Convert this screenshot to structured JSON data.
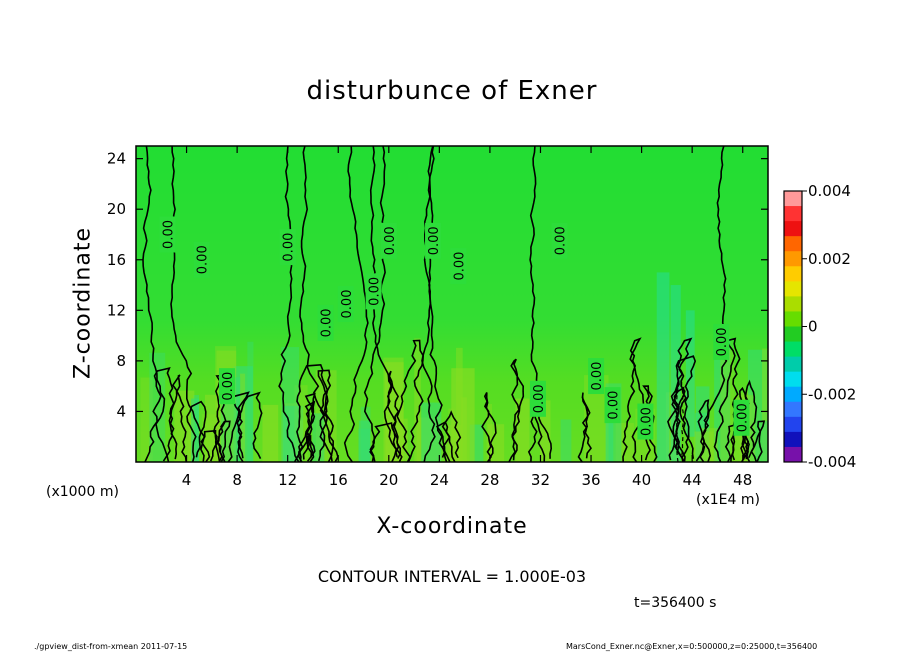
{
  "chart_data": {
    "type": "heatmap",
    "title": "disturbunce of Exner",
    "xlabel": "X-coordinate",
    "ylabel": "Z-coordinate",
    "x_unit_left": "(x1000 m)",
    "x_unit_right": "(x1E4 m)",
    "xlim": [
      0,
      50
    ],
    "ylim": [
      0,
      25
    ],
    "x_ticks": [
      4,
      8,
      12,
      16,
      20,
      24,
      28,
      32,
      36,
      40,
      44,
      48
    ],
    "y_ticks": [
      4,
      8,
      12,
      16,
      20,
      24
    ],
    "colorbar": {
      "min": -0.004,
      "max": 0.004,
      "labels": [
        "0.004",
        "0.002",
        "0",
        "-0.002",
        "-0.004"
      ],
      "colors": [
        "#ff9999",
        "#ff3333",
        "#ee1111",
        "#ff6600",
        "#ff9900",
        "#ffcc00",
        "#e5e500",
        "#aadd00",
        "#66dd00",
        "#22cc22",
        "#00dd66",
        "#00ccaa",
        "#00ddee",
        "#00aaff",
        "#3377ff",
        "#2244ee",
        "#1111bb",
        "#7711aa"
      ]
    },
    "contour_labels": [
      {
        "x": 2.5,
        "z": 18,
        "text": "0.00"
      },
      {
        "x": 5.2,
        "z": 16,
        "text": "0.00"
      },
      {
        "x": 12.0,
        "z": 17,
        "text": "0.00"
      },
      {
        "x": 15.0,
        "z": 11,
        "text": "0.00"
      },
      {
        "x": 16.6,
        "z": 12.5,
        "text": "0.00"
      },
      {
        "x": 18.8,
        "z": 13.5,
        "text": "0.00"
      },
      {
        "x": 20.0,
        "z": 17.5,
        "text": "0.00"
      },
      {
        "x": 23.5,
        "z": 17.5,
        "text": "0.00"
      },
      {
        "x": 25.5,
        "z": 15.5,
        "text": "0.00"
      },
      {
        "x": 33.5,
        "z": 17.5,
        "text": "0.00"
      },
      {
        "x": 7.2,
        "z": 6,
        "text": "0.00"
      },
      {
        "x": 31.8,
        "z": 5,
        "text": "0.00"
      },
      {
        "x": 36.4,
        "z": 6.8,
        "text": "0.00"
      },
      {
        "x": 37.7,
        "z": 4.5,
        "text": "0.00"
      },
      {
        "x": 40.3,
        "z": 3.2,
        "text": "0.00"
      },
      {
        "x": 46.3,
        "z": 9.5,
        "text": "0.00"
      },
      {
        "x": 47.9,
        "z": 3.5,
        "text": "0.00"
      }
    ],
    "annotation": "CONTOUR INTERVAL = 1.000E-03",
    "time_label": "t=356400 s"
  },
  "footer": {
    "left": "./gpview_dist-from-xmean  2011-07-15",
    "right": "MarsCond_Exner.nc@Exner,x=0:500000,z=0:25000,t=356400"
  }
}
